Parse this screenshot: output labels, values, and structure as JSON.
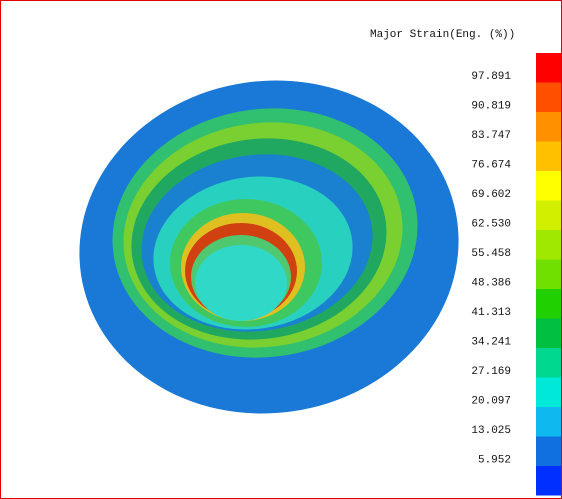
{
  "legend": {
    "title": "Major Strain(Eng. (%))",
    "labels": [
      "97.891",
      "90.819",
      "83.747",
      "76.674",
      "69.602",
      "62.530",
      "55.458",
      "48.386",
      "41.313",
      "34.241",
      "27.169",
      "20.097",
      "13.025",
      "5.952"
    ],
    "colors": [
      "#ff0000",
      "#ff5000",
      "#ff9000",
      "#ffc000",
      "#ffff00",
      "#d0f000",
      "#a0e800",
      "#70e000",
      "#20d000",
      "#00c040",
      "#00d890",
      "#00e8d8",
      "#10b8f0",
      "#1070e0",
      "#0030ff"
    ]
  }
}
